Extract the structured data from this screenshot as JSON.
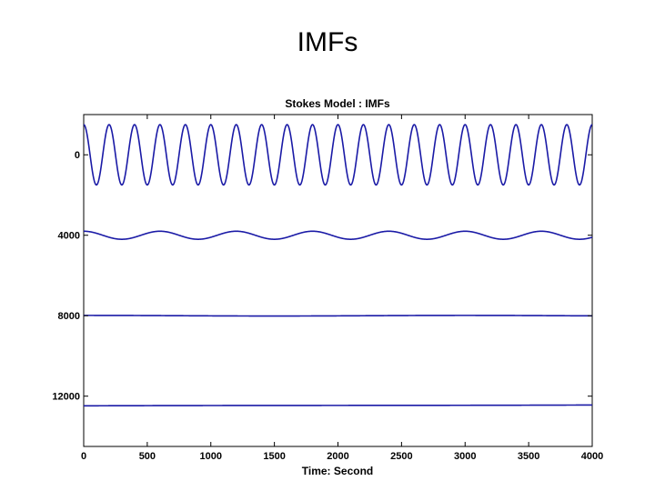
{
  "slide": {
    "title": "IMFs"
  },
  "chart_data": {
    "type": "line",
    "title": "Stokes Model : IMFs",
    "xlabel": "Time: Second",
    "ylabel": "",
    "xlim": [
      0,
      4000
    ],
    "ylim": [
      14500,
      -2000
    ],
    "y_axis_inverted": true,
    "grid": false,
    "legend": "none",
    "line_color": "#1a1aa6",
    "x_ticks": [
      0,
      500,
      1000,
      1500,
      2000,
      2500,
      3000,
      3500,
      4000
    ],
    "x_tick_labels": [
      "0",
      "500",
      "1000",
      "1500",
      "2000",
      "2500",
      "3000",
      "3500",
      "4000"
    ],
    "y_ticks": [
      0,
      4000,
      8000,
      12000
    ],
    "y_tick_labels": [
      "0",
      "4000",
      "8000",
      "12000"
    ],
    "series": [
      {
        "offset": 0,
        "amplitude": 1500,
        "period": 200,
        "phase": 0,
        "trend": 0
      },
      {
        "offset": 4000,
        "amplitude": 200,
        "period": 600,
        "phase": 0,
        "trend": 0
      },
      {
        "offset": 8000,
        "amplitude": 15,
        "period": 3000,
        "phase": 0,
        "trend": 0
      },
      {
        "offset": 12500,
        "amplitude": 20,
        "period": 8000,
        "phase": 0,
        "trend": -80
      }
    ]
  }
}
